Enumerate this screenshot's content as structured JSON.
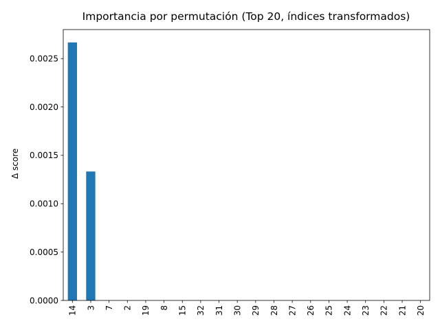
{
  "chart_data": {
    "type": "bar",
    "title": "Importancia por permutación (Top 20, índices transformados)",
    "xlabel": "",
    "ylabel": "Δ score",
    "categories": [
      "14",
      "3",
      "7",
      "2",
      "19",
      "8",
      "15",
      "32",
      "31",
      "30",
      "29",
      "28",
      "27",
      "26",
      "25",
      "24",
      "23",
      "22",
      "21",
      "20"
    ],
    "values": [
      0.002667,
      0.001333,
      0,
      0,
      0,
      0,
      0,
      0,
      0,
      0,
      0,
      0,
      0,
      0,
      0,
      0,
      0,
      0,
      0,
      0
    ],
    "ylim": [
      0,
      0.0028
    ],
    "yticks": [
      0.0,
      0.0005,
      0.001,
      0.0015,
      0.002,
      0.0025
    ],
    "ytick_labels": [
      "0.0000",
      "0.0005",
      "0.0010",
      "0.0015",
      "0.0020",
      "0.0025"
    ],
    "bar_color": "#1f77b4",
    "grid": false,
    "legend": "none"
  }
}
